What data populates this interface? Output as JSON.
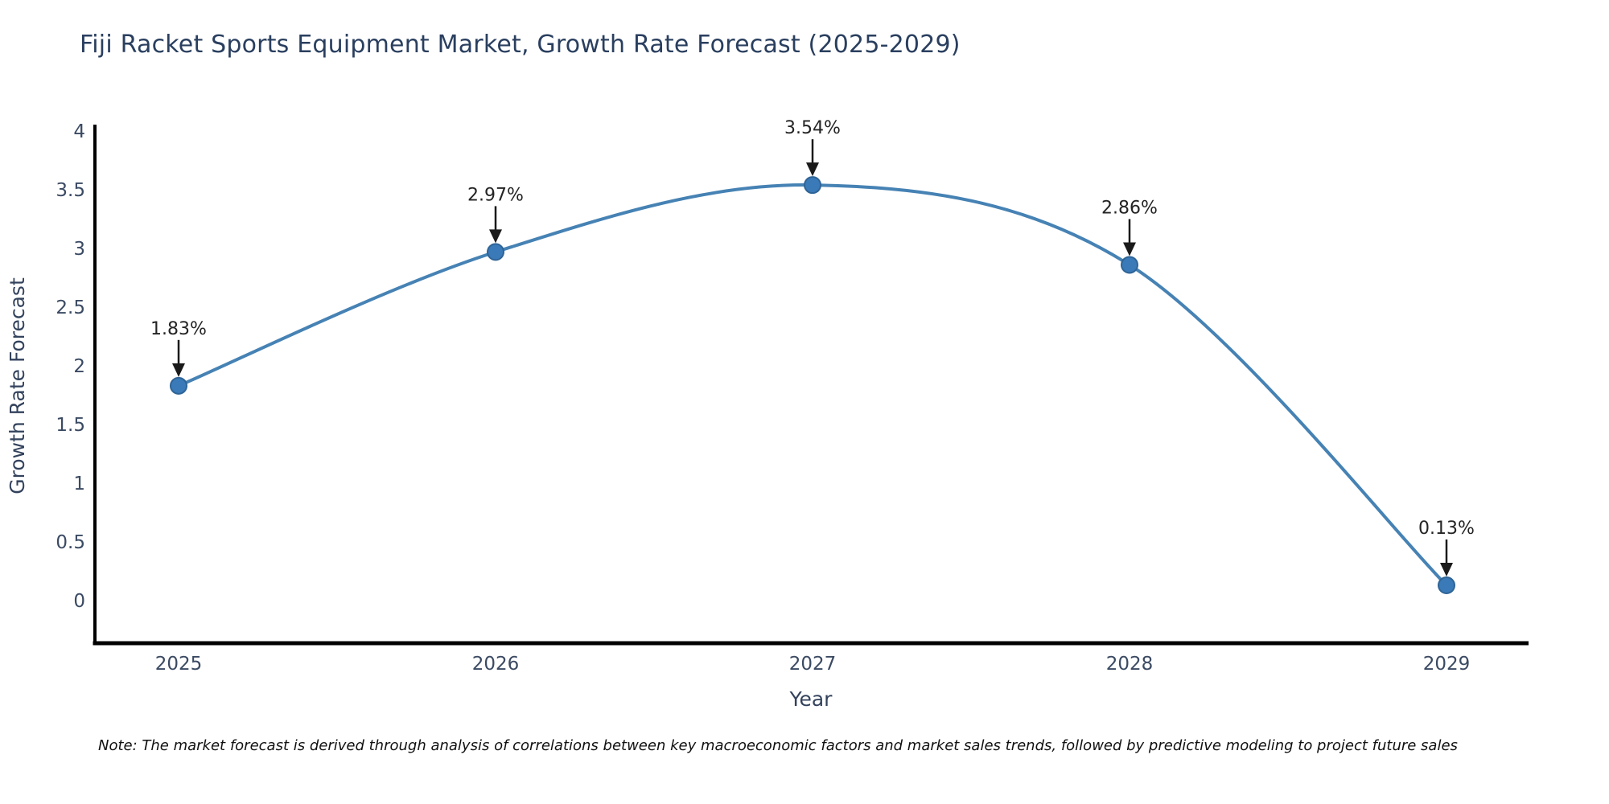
{
  "title": "Fiji Racket Sports Equipment Market, Growth Rate Forecast (2025-2029)",
  "note": "Note: The market forecast is derived through analysis of correlations between key macroeconomic factors and market sales trends, followed by predictive modeling to project future sales",
  "chart_data": {
    "type": "line",
    "title": "Fiji Racket Sports Equipment Market, Growth Rate Forecast (2025-2029)",
    "xlabel": "Year",
    "ylabel": "Growth Rate Forecast",
    "x": [
      2025,
      2026,
      2027,
      2028,
      2029
    ],
    "series": [
      {
        "name": "Growth Rate Forecast",
        "values": [
          1.83,
          2.97,
          3.54,
          2.86,
          0.13
        ]
      }
    ],
    "point_labels": [
      "1.83%",
      "2.97%",
      "3.54%",
      "2.86%",
      "0.13%"
    ],
    "xticks": [
      "2025",
      "2026",
      "2027",
      "2028",
      "2029"
    ],
    "yticks": [
      0,
      0.5,
      1,
      1.5,
      2,
      2.5,
      3,
      3.5,
      4
    ],
    "ylim": [
      0,
      4
    ],
    "line_shape": "spline",
    "grid": false,
    "legend": "none",
    "colors": {
      "line": "#4682b4",
      "marker": "#3a7ab8",
      "marker_edge": "#2f6496",
      "arrow": "#1a1a1a",
      "annotation_text": "#242424",
      "axis_line": "#000000",
      "tick_text": "#3b4a63",
      "title_text": "#2a3f5f",
      "axis_title_text": "#33425c"
    }
  }
}
